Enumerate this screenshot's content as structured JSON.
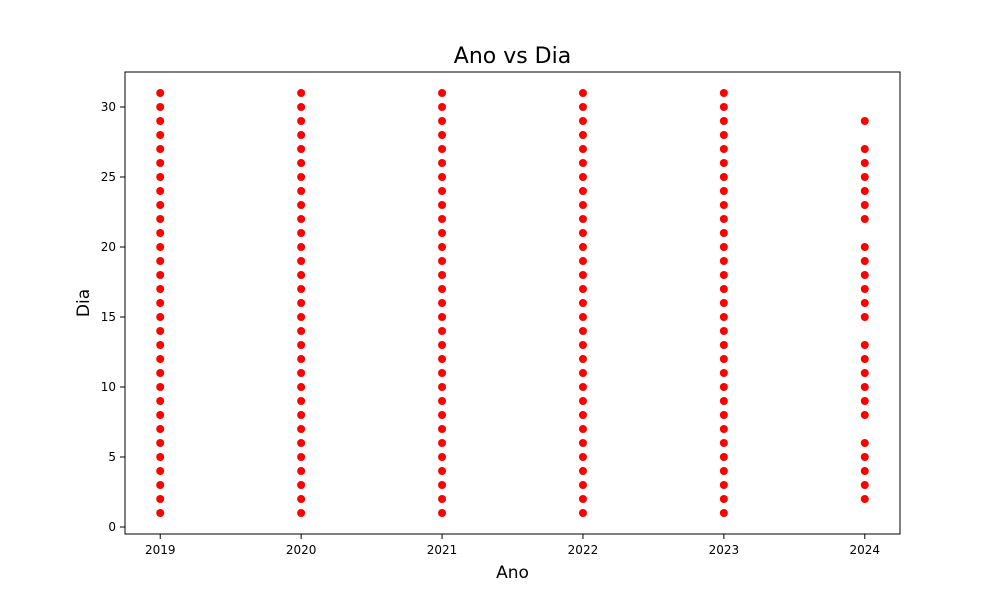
{
  "chart_data": {
    "type": "scatter",
    "title": "Ano vs Dia",
    "xlabel": "Ano",
    "ylabel": "Dia",
    "xlim": [
      2018.75,
      2024.25
    ],
    "ylim": [
      -0.5,
      32.5
    ],
    "x_ticks": [
      2019,
      2020,
      2021,
      2022,
      2023,
      2024
    ],
    "y_ticks": [
      0,
      5,
      10,
      15,
      20,
      25,
      30
    ],
    "grid": false,
    "marker_color": "#ff0000",
    "series": [
      {
        "points": [
          {
            "x": 2019,
            "days": [
              1,
              2,
              3,
              4,
              5,
              6,
              7,
              8,
              9,
              10,
              11,
              12,
              13,
              14,
              15,
              16,
              17,
              18,
              19,
              20,
              21,
              22,
              23,
              24,
              25,
              26,
              27,
              28,
              29,
              30,
              31
            ]
          },
          {
            "x": 2020,
            "days": [
              1,
              2,
              3,
              4,
              5,
              6,
              7,
              8,
              9,
              10,
              11,
              12,
              13,
              14,
              15,
              16,
              17,
              18,
              19,
              20,
              21,
              22,
              23,
              24,
              25,
              26,
              27,
              28,
              29,
              30,
              31
            ]
          },
          {
            "x": 2021,
            "days": [
              1,
              2,
              3,
              4,
              5,
              6,
              7,
              8,
              9,
              10,
              11,
              12,
              13,
              14,
              15,
              16,
              17,
              18,
              19,
              20,
              21,
              22,
              23,
              24,
              25,
              26,
              27,
              28,
              29,
              30,
              31
            ]
          },
          {
            "x": 2022,
            "days": [
              1,
              2,
              3,
              4,
              5,
              6,
              7,
              8,
              9,
              10,
              11,
              12,
              13,
              14,
              15,
              16,
              17,
              18,
              19,
              20,
              21,
              22,
              23,
              24,
              25,
              26,
              27,
              28,
              29,
              30,
              31
            ]
          },
          {
            "x": 2023,
            "days": [
              1,
              2,
              3,
              4,
              5,
              6,
              7,
              8,
              9,
              10,
              11,
              12,
              13,
              14,
              15,
              16,
              17,
              18,
              19,
              20,
              21,
              22,
              23,
              24,
              25,
              26,
              27,
              28,
              29,
              30,
              31
            ]
          },
          {
            "x": 2024,
            "days": [
              2,
              3,
              4,
              5,
              6,
              8,
              9,
              10,
              11,
              12,
              13,
              15,
              16,
              17,
              18,
              19,
              20,
              22,
              23,
              24,
              25,
              26,
              27,
              29
            ]
          }
        ]
      }
    ]
  }
}
